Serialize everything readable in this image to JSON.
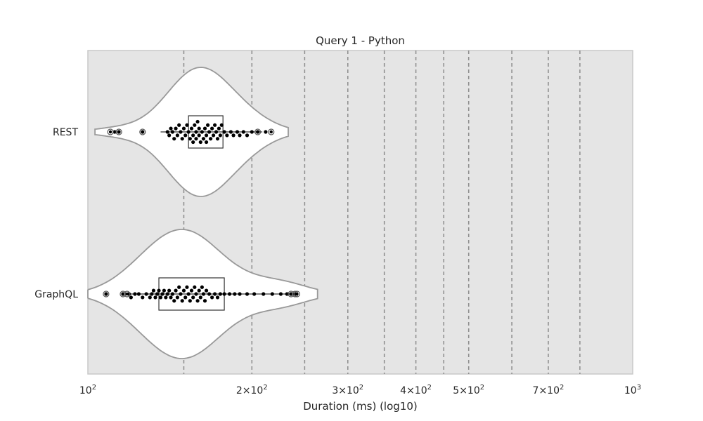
{
  "chart_data": {
    "type": "violin",
    "title": "Query 1 - Python",
    "xlabel": "Duration (ms) (log10)",
    "ylabel": "",
    "xscale": "log10",
    "xlim": [
      100,
      1000
    ],
    "x_tick_labels": [
      "10^2",
      "2×10^2",
      "3×10^2",
      "4×10^2",
      "5×10^2",
      "7×10^2",
      "10^3"
    ],
    "x_ticks": [
      100,
      200,
      300,
      400,
      500,
      700,
      1000
    ],
    "gridlines_x": [
      150,
      200,
      250,
      300,
      350,
      400,
      450,
      500,
      600,
      700,
      800
    ],
    "grid": true,
    "categories": [
      "REST",
      "GraphQL"
    ],
    "series": [
      {
        "category": "REST",
        "box": {
          "q1": 153,
          "median": 158,
          "q3": 177,
          "whisker_low": 136,
          "whisker_high": 209
        },
        "points": [
          112,
          114,
          126,
          140,
          141,
          142,
          143,
          144,
          145,
          146,
          147,
          148,
          149,
          150,
          151,
          152,
          153,
          154,
          155,
          156,
          156,
          157,
          158,
          158,
          159,
          160,
          160,
          161,
          162,
          163,
          164,
          165,
          165,
          166,
          167,
          168,
          169,
          170,
          171,
          172,
          173,
          174,
          175,
          176,
          178,
          180,
          183,
          185,
          188,
          190,
          193,
          196,
          200,
          205,
          212
        ],
        "outliers": [
          110,
          114,
          126,
          205,
          217
        ]
      },
      {
        "category": "GraphQL",
        "box": {
          "q1": 135,
          "median": 152,
          "q3": 178,
          "whisker_low": 117,
          "whisker_high": 240
        },
        "points": [
          108,
          116,
          119,
          120,
          122,
          124,
          126,
          128,
          130,
          131,
          132,
          133,
          134,
          135,
          136,
          137,
          138,
          139,
          140,
          141,
          142,
          143,
          144,
          145,
          146,
          147,
          148,
          149,
          150,
          151,
          152,
          153,
          154,
          155,
          156,
          157,
          158,
          159,
          160,
          161,
          162,
          163,
          164,
          165,
          167,
          169,
          171,
          173,
          175,
          178,
          182,
          186,
          190,
          196,
          202,
          210,
          218,
          226,
          232,
          236,
          240
        ],
        "outliers": [
          108,
          116,
          118,
          236,
          240,
          242
        ]
      }
    ]
  }
}
